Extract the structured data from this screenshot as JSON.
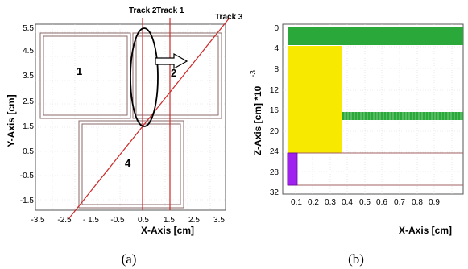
{
  "left_panel": {
    "caption": "(a)",
    "x_axis_label": "X-Axis [cm]",
    "y_axis_label": "Y-Axis [cm]",
    "x_ticks": [
      "-3.5",
      "-2.5",
      "- 1.5",
      "-0.5",
      "0.5",
      "1.5",
      "2.5",
      "3.5"
    ],
    "y_ticks": [
      "5.5",
      "4.5",
      "3.5",
      "2.5",
      "1.5",
      "0.5",
      "-0.5",
      "-1.5"
    ],
    "tracks": {
      "track1": "Track 1",
      "track2": "Track 2",
      "track3": "Track 3"
    },
    "regions": {
      "r1": "1",
      "r2": "2",
      "r4": "4"
    },
    "colors": {
      "track": "#cc2a2a",
      "frame": "#8a6a6a",
      "ellipse": "#000000"
    }
  },
  "right_panel": {
    "caption": "(b)",
    "x_axis_label": "X-Axis [cm]",
    "z_axis_label": "Z-Axis [cm] *10",
    "z_axis_exponent": "-3",
    "x_ticks": [
      "0.1",
      "0.2",
      "0.3",
      "0.4",
      "0.5",
      "0.6",
      "0.7",
      "0.8",
      "0.9"
    ],
    "z_ticks": [
      "0",
      "4",
      "8",
      "12",
      "16",
      "20",
      "24",
      "28",
      "32"
    ],
    "colors": {
      "green": "#2aa83a",
      "yellow": "#f7ea00",
      "purple": "#a020f0",
      "line": "#a06060"
    }
  }
}
